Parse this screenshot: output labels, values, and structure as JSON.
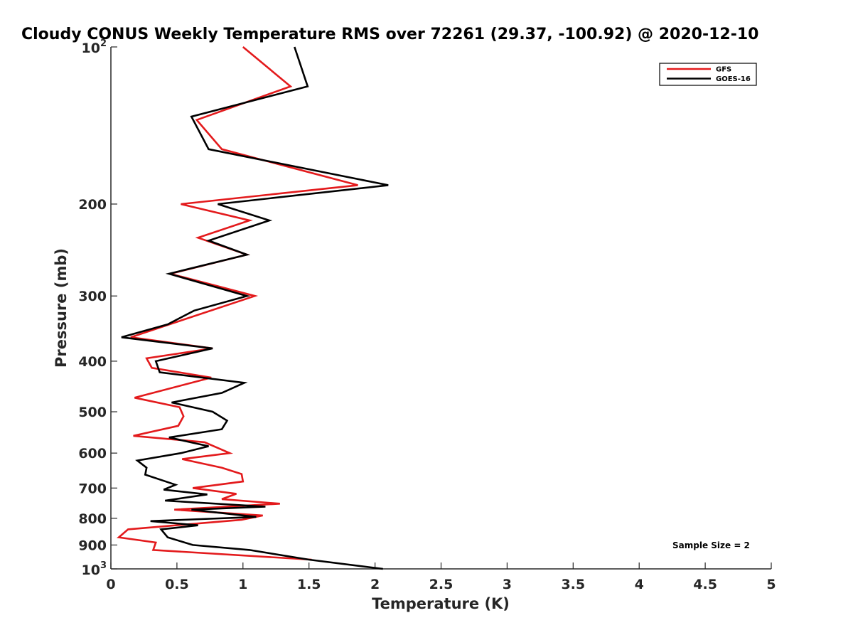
{
  "chart_data": {
    "type": "line",
    "title": "Cloudy CONUS Weekly Temperature RMS over 72261 (29.37, -100.92) @ 2020-12-10",
    "xlabel": "Temperature (K)",
    "ylabel": "Pressure (mb)",
    "xlim": [
      0,
      5
    ],
    "ylim": [
      100,
      1000
    ],
    "y_scale": "log",
    "y_reversed": true,
    "x_ticks": [
      "0",
      "0.5",
      "1",
      "1.5",
      "2",
      "2.5",
      "3",
      "3.5",
      "4",
      "4.5",
      "5"
    ],
    "y_ticks": [
      {
        "value": 100,
        "base": "10",
        "exp": "2"
      },
      {
        "value": 200,
        "label": "200"
      },
      {
        "value": 300,
        "label": "300"
      },
      {
        "value": 400,
        "label": "400"
      },
      {
        "value": 500,
        "label": "500"
      },
      {
        "value": 600,
        "label": "600"
      },
      {
        "value": 700,
        "label": "700"
      },
      {
        "value": 800,
        "label": "800"
      },
      {
        "value": 900,
        "label": "900"
      },
      {
        "value": 1000,
        "base": "10",
        "exp": "3"
      }
    ],
    "legend_position": "top-right",
    "grid": false,
    "annotation": "Sample Size = 2",
    "series": [
      {
        "name": "GFS",
        "color": "#e31a1c",
        "points": [
          [
            1.0,
            100
          ],
          [
            1.36,
            119
          ],
          [
            0.65,
            138
          ],
          [
            0.84,
            157
          ],
          [
            1.87,
            184
          ],
          [
            0.53,
            200
          ],
          [
            1.05,
            215
          ],
          [
            0.66,
            232
          ],
          [
            1.03,
            250
          ],
          [
            0.45,
            272
          ],
          [
            1.09,
            300
          ],
          [
            0.55,
            333
          ],
          [
            0.15,
            360
          ],
          [
            0.77,
            378
          ],
          [
            0.27,
            395
          ],
          [
            0.31,
            412
          ],
          [
            0.76,
            430
          ],
          [
            0.18,
            470
          ],
          [
            0.52,
            490
          ],
          [
            0.55,
            510
          ],
          [
            0.51,
            532
          ],
          [
            0.17,
            556
          ],
          [
            0.71,
            572
          ],
          [
            0.9,
            600
          ],
          [
            0.54,
            616
          ],
          [
            0.84,
            640
          ],
          [
            0.99,
            658
          ],
          [
            1.0,
            680
          ],
          [
            0.62,
            700
          ],
          [
            0.95,
            718
          ],
          [
            0.84,
            735
          ],
          [
            1.28,
            750
          ],
          [
            0.48,
            770
          ],
          [
            1.15,
            790
          ],
          [
            0.99,
            805
          ],
          [
            0.13,
            840
          ],
          [
            0.06,
            870
          ],
          [
            0.34,
            890
          ],
          [
            0.32,
            920
          ],
          [
            1.52,
            960
          ]
        ]
      },
      {
        "name": "GOES-16",
        "color": "#000000",
        "points": [
          [
            1.39,
            100
          ],
          [
            1.49,
            119
          ],
          [
            0.61,
            136
          ],
          [
            0.74,
            157
          ],
          [
            2.1,
            184
          ],
          [
            0.81,
            200
          ],
          [
            1.2,
            215
          ],
          [
            0.74,
            235
          ],
          [
            1.03,
            250
          ],
          [
            0.44,
            272
          ],
          [
            1.03,
            300
          ],
          [
            0.63,
            320
          ],
          [
            0.43,
            340
          ],
          [
            0.08,
            360
          ],
          [
            0.77,
            378
          ],
          [
            0.34,
            400
          ],
          [
            0.37,
            420
          ],
          [
            1.01,
            440
          ],
          [
            0.84,
            460
          ],
          [
            0.46,
            480
          ],
          [
            0.77,
            500
          ],
          [
            0.88,
            520
          ],
          [
            0.84,
            540
          ],
          [
            0.44,
            560
          ],
          [
            0.74,
            582
          ],
          [
            0.53,
            600
          ],
          [
            0.2,
            620
          ],
          [
            0.27,
            640
          ],
          [
            0.26,
            660
          ],
          [
            0.49,
            690
          ],
          [
            0.4,
            705
          ],
          [
            0.73,
            720
          ],
          [
            0.41,
            740
          ],
          [
            1.17,
            760
          ],
          [
            0.61,
            770
          ],
          [
            1.1,
            795
          ],
          [
            0.3,
            810
          ],
          [
            0.66,
            825
          ],
          [
            0.38,
            840
          ],
          [
            0.43,
            870
          ],
          [
            0.62,
            900
          ],
          [
            1.05,
            920
          ],
          [
            1.5,
            960
          ],
          [
            2.06,
            1000
          ]
        ]
      }
    ]
  }
}
